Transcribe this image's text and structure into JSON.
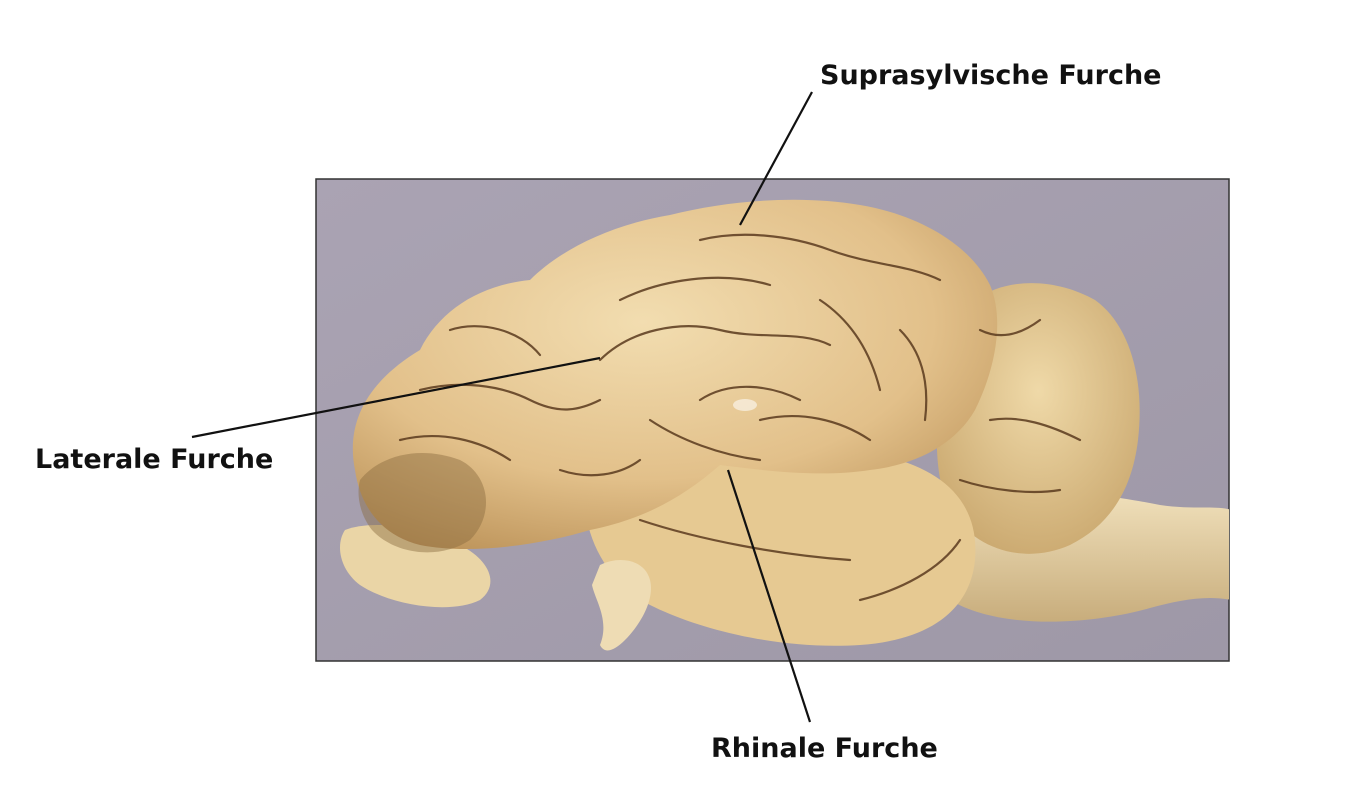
{
  "labels": {
    "suprasylvian": "Suprasylvische Furche",
    "lateral": "Laterale Furche",
    "rhinal": "Rhinale Furche"
  },
  "colors": {
    "background": "#a59fae",
    "tissue": "#e5c48c",
    "sulcus": "#5a3a1e",
    "leader_line": "#111111"
  }
}
